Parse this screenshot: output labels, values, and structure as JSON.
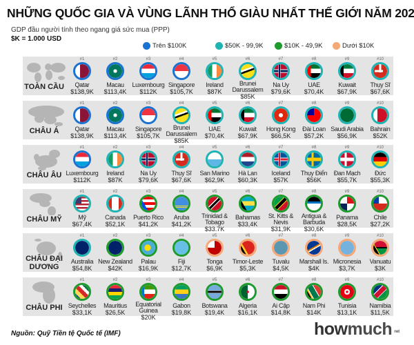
{
  "title": "NHỮNG QUỐC GIA VÀ VÙNG LÃNH THỔ GIÀU NHẤT THẾ GIỚI NĂM 2020",
  "subtitle": "GDP đầu người tính theo ngang giá sức mua (PPP)",
  "unit_note": "$K = 1.000 USD",
  "legend": [
    {
      "label": "Trên $100K",
      "color": "#1a73d1",
      "tier": "over100"
    },
    {
      "label": "$50K - 99,9K",
      "color": "#1fb3b3",
      "tier": "50to100"
    },
    {
      "label": "$10K - 49,9K",
      "color": "#1e9a2e",
      "tier": "10to50"
    },
    {
      "label": "Dưới $10K",
      "color": "#f5a878",
      "tier": "under10"
    }
  ],
  "regions": [
    {
      "label": "TOÀN CẦU",
      "map_icon": "world-map-icon",
      "items": [
        {
          "rank": "#1",
          "name": "Qatar",
          "value": "$138,9K",
          "tier": "over100"
        },
        {
          "rank": "#2",
          "name": "Macau",
          "value": "$113,4K",
          "tier": "over100"
        },
        {
          "rank": "#3",
          "name": "Luxembourg",
          "value": "$112K",
          "tier": "over100"
        },
        {
          "rank": "#4",
          "name": "Singapore",
          "value": "$105,7K",
          "tier": "over100"
        },
        {
          "rank": "#5",
          "name": "Ireland",
          "value": "$87K",
          "tier": "50to100"
        },
        {
          "rank": "#6",
          "name": "Brunei Darussalem",
          "value": "$85K",
          "tier": "50to100"
        },
        {
          "rank": "#7",
          "name": "Na Uy",
          "value": "$79,6K",
          "tier": "50to100"
        },
        {
          "rank": "#8",
          "name": "UAE",
          "value": "$70,4K",
          "tier": "50to100"
        },
        {
          "rank": "#9",
          "name": "Kuwait",
          "value": "$67,9K",
          "tier": "50to100"
        },
        {
          "rank": "#10",
          "name": "Thụy Sĩ",
          "value": "$67,6K",
          "tier": "50to100"
        }
      ]
    },
    {
      "label": "CHÂU Á",
      "map_icon": "asia-map-icon",
      "items": [
        {
          "rank": "#1",
          "name": "Qatar",
          "value": "$138,9K",
          "tier": "over100"
        },
        {
          "rank": "#2",
          "name": "Macau",
          "value": "$113,4K",
          "tier": "over100"
        },
        {
          "rank": "#3",
          "name": "Singapore",
          "value": "$105,7K",
          "tier": "over100"
        },
        {
          "rank": "#4",
          "name": "Brunei Darussalem",
          "value": "$85K",
          "tier": "50to100"
        },
        {
          "rank": "#5",
          "name": "UAE",
          "value": "$70,4K",
          "tier": "50to100"
        },
        {
          "rank": "#6",
          "name": "Kuwait",
          "value": "$67,9K",
          "tier": "50to100"
        },
        {
          "rank": "#7",
          "name": "Hong Kong",
          "value": "$66,5K",
          "tier": "50to100"
        },
        {
          "rank": "#8",
          "name": "Đài Loan",
          "value": "$57,2K",
          "tier": "50to100"
        },
        {
          "rank": "#9",
          "name": "Saudi Arabia",
          "value": "$56,9K",
          "tier": "50to100"
        },
        {
          "rank": "#10",
          "name": "Bahrain",
          "value": "$52K",
          "tier": "50to100"
        }
      ]
    },
    {
      "label": "CHÂU ÂU",
      "map_icon": "europe-map-icon",
      "items": [
        {
          "rank": "#1",
          "name": "Luxembourg",
          "value": "$112K",
          "tier": "over100"
        },
        {
          "rank": "#2",
          "name": "Ireland",
          "value": "$87K",
          "tier": "50to100"
        },
        {
          "rank": "#3",
          "name": "Na Uy",
          "value": "$79,6K",
          "tier": "50to100"
        },
        {
          "rank": "#4",
          "name": "Thụy Sĩ",
          "value": "$67,6K",
          "tier": "50to100"
        },
        {
          "rank": "#5",
          "name": "San Marino",
          "value": "$62,9K",
          "tier": "50to100"
        },
        {
          "rank": "#6",
          "name": "Hà Lan",
          "value": "$60,3K",
          "tier": "50to100"
        },
        {
          "rank": "#7",
          "name": "Iceland",
          "value": "$57K",
          "tier": "50to100"
        },
        {
          "rank": "#8",
          "name": "Thụy Điển",
          "value": "$56K",
          "tier": "50to100"
        },
        {
          "rank": "#9",
          "name": "Đan Mạch",
          "value": "$55,7K",
          "tier": "50to100"
        },
        {
          "rank": "#10",
          "name": "Đức",
          "value": "$55,3K",
          "tier": "50to100"
        }
      ]
    },
    {
      "label": "CHÂU MỸ",
      "map_icon": "americas-map-icon",
      "items": [
        {
          "rank": "#1",
          "name": "Mỹ",
          "value": "$67,4K",
          "tier": "50to100"
        },
        {
          "rank": "#2",
          "name": "Canada",
          "value": "$52,1K",
          "tier": "50to100"
        },
        {
          "rank": "#3",
          "name": "Puerto Rico",
          "value": "$41,2K",
          "tier": "10to50"
        },
        {
          "rank": "#4",
          "name": "Aruba",
          "value": "$41,2K",
          "tier": "10to50"
        },
        {
          "rank": "#5",
          "name": "Trinidad & Tobago",
          "value": "$33.7K",
          "tier": "10to50"
        },
        {
          "rank": "#6",
          "name": "Bahamas",
          "value": "$33,4K",
          "tier": "10to50"
        },
        {
          "rank": "#7",
          "name": "St. Kitts & Nevis",
          "value": "$31,9K",
          "tier": "10to50"
        },
        {
          "rank": "#8",
          "name": "Antigua & Barbuda",
          "value": "$30,6K",
          "tier": "10to50"
        },
        {
          "rank": "#9",
          "name": "Panama",
          "value": "$28,5K",
          "tier": "10to50"
        },
        {
          "rank": "#10",
          "name": "Chile",
          "value": "$27,2K",
          "tier": "10to50"
        }
      ]
    },
    {
      "label": "CHÂU ĐẠI DƯƠNG",
      "map_icon": "oceania-map-icon",
      "items": [
        {
          "rank": "#1",
          "name": "Australia",
          "value": "$54,8K",
          "tier": "50to100"
        },
        {
          "rank": "#2",
          "name": "New Zealand",
          "value": "$42K",
          "tier": "10to50"
        },
        {
          "rank": "#3",
          "name": "Palau",
          "value": "$16,9K",
          "tier": "10to50"
        },
        {
          "rank": "#4",
          "name": "Fiji",
          "value": "$12,7K",
          "tier": "10to50"
        },
        {
          "rank": "#5",
          "name": "Tonga",
          "value": "$6,9K",
          "tier": "under10"
        },
        {
          "rank": "#6",
          "name": "Timor-Leste",
          "value": "$5,3K",
          "tier": "under10"
        },
        {
          "rank": "#7",
          "name": "Tuvalu",
          "value": "$4,5K",
          "tier": "under10"
        },
        {
          "rank": "#8",
          "name": "Marshall Is.",
          "value": "$4K",
          "tier": "under10"
        },
        {
          "rank": "#9",
          "name": "Micronesia",
          "value": "$3,7K",
          "tier": "under10"
        },
        {
          "rank": "#10",
          "name": "Vanuatu",
          "value": "$3K",
          "tier": "under10"
        }
      ]
    },
    {
      "label": "CHÂU PHI",
      "map_icon": "africa-map-icon",
      "items": [
        {
          "rank": "#1",
          "name": "Seychelles",
          "value": "$33,1K",
          "tier": "10to50"
        },
        {
          "rank": "#2",
          "name": "Mauritius",
          "value": "$26,5K",
          "tier": "10to50"
        },
        {
          "rank": "#3",
          "name": "Equatorial Guinea",
          "value": "$20K",
          "tier": "10to50"
        },
        {
          "rank": "#4",
          "name": "Gabon",
          "value": "$19,8K",
          "tier": "10to50"
        },
        {
          "rank": "#5",
          "name": "Botswana",
          "value": "$19,4K",
          "tier": "10to50"
        },
        {
          "rank": "#6",
          "name": "Algeria",
          "value": "$16,1K",
          "tier": "10to50"
        },
        {
          "rank": "#7",
          "name": "Ai Cập",
          "value": "$14,8K",
          "tier": "10to50"
        },
        {
          "rank": "#8",
          "name": "Nam Phi",
          "value": "$14K",
          "tier": "10to50"
        },
        {
          "rank": "#9",
          "name": "Tunisia",
          "value": "$13,1K",
          "tier": "10to50"
        },
        {
          "rank": "#10",
          "name": "Namibia",
          "value": "$11,5K",
          "tier": "10to50"
        }
      ]
    }
  ],
  "source": "Nguồn: Quỹ Tiền tệ Quốc tế (IMF)",
  "logo": {
    "part1": "how",
    "part2": "much",
    "suffix": "net"
  }
}
